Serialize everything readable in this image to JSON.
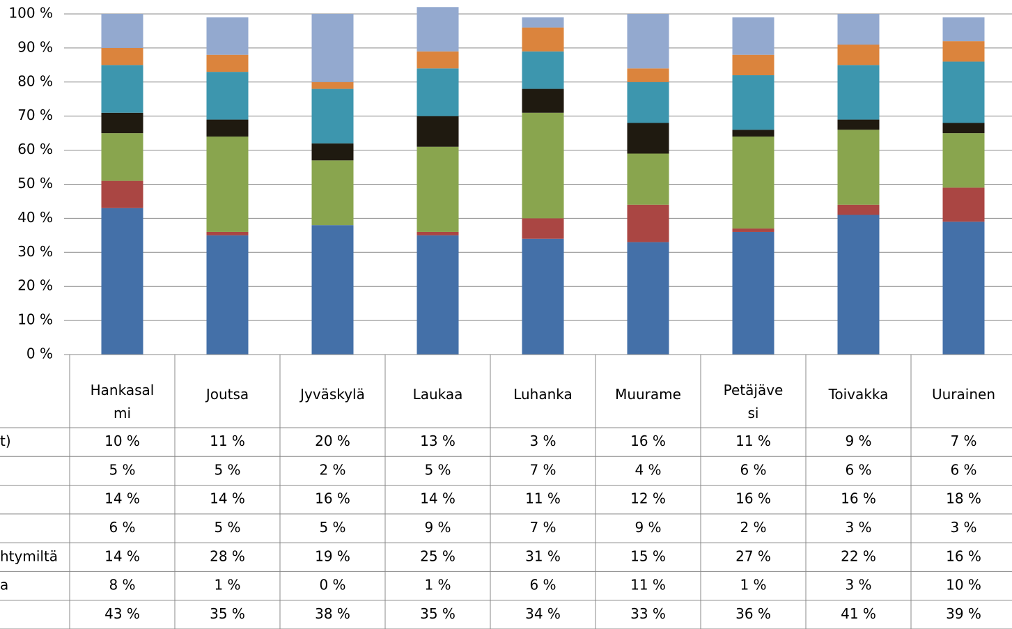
{
  "chart_data": {
    "type": "stacked-bar",
    "categories": [
      "Hankasalmi",
      "Joutsa",
      "Jyväskylä",
      "Laukaa",
      "Luhanka",
      "Muurame",
      "Petäjävesi",
      "Toivakka",
      "Uurainen"
    ],
    "series": [
      {
        "name": null,
        "color": "#4470a8",
        "values": [
          43,
          35,
          38,
          35,
          34,
          33,
          36,
          41,
          39
        ],
        "value_labels": [
          "43 %",
          "35 %",
          "38 %",
          "35 %",
          "34 %",
          "33 %",
          "36 %",
          "41 %",
          "39 %"
        ]
      },
      {
        "name": "a",
        "color": "#aa4643",
        "values": [
          8,
          1,
          0,
          1,
          6,
          11,
          1,
          3,
          10
        ],
        "value_labels": [
          "8 %",
          "1 %",
          "0 %",
          "1 %",
          "6 %",
          "11 %",
          "1 %",
          "3 %",
          "10 %"
        ]
      },
      {
        "name": "htymiltä",
        "color": "#89a54e",
        "values": [
          14,
          28,
          19,
          25,
          31,
          15,
          27,
          22,
          16
        ],
        "value_labels": [
          "14 %",
          "28 %",
          "19 %",
          "25 %",
          "31 %",
          "15 %",
          "27 %",
          "22 %",
          "16 %"
        ]
      },
      {
        "name": null,
        "color": "#1f1a10",
        "values": [
          6,
          5,
          5,
          9,
          7,
          9,
          2,
          3,
          3
        ],
        "value_labels": [
          "6 %",
          "5 %",
          "5 %",
          "9 %",
          "7 %",
          "9 %",
          "2 %",
          "3 %",
          "3 %"
        ]
      },
      {
        "name": null,
        "color": "#3d96ae",
        "values": [
          14,
          14,
          16,
          14,
          11,
          12,
          16,
          16,
          18
        ],
        "value_labels": [
          "14 %",
          "14 %",
          "16 %",
          "14 %",
          "11 %",
          "12 %",
          "16 %",
          "16 %",
          "18 %"
        ]
      },
      {
        "name": null,
        "color": "#db843d",
        "values": [
          5,
          5,
          2,
          5,
          7,
          4,
          6,
          6,
          6
        ],
        "value_labels": [
          "5 %",
          "5 %",
          "2 %",
          "5 %",
          "7 %",
          "4 %",
          "6 %",
          "6 %",
          "6 %"
        ]
      },
      {
        "name": "t)",
        "color": "#93a9cf",
        "values": [
          10,
          11,
          20,
          13,
          3,
          16,
          11,
          9,
          7
        ],
        "value_labels": [
          "10 %",
          "11 %",
          "20 %",
          "13 %",
          "3 %",
          "16 %",
          "11 %",
          "9 %",
          "7 %"
        ]
      }
    ],
    "ylim": [
      0,
      100
    ],
    "yticks": [
      {
        "value": 0,
        "label": "0 %"
      },
      {
        "value": 10,
        "label": "10 %"
      },
      {
        "value": 20,
        "label": "20 %"
      },
      {
        "value": 30,
        "label": "30 %"
      },
      {
        "value": 40,
        "label": "40 %"
      },
      {
        "value": 50,
        "label": "50 %"
      },
      {
        "value": 60,
        "label": "60 %"
      },
      {
        "value": 70,
        "label": "70 %"
      },
      {
        "value": 80,
        "label": "80 %"
      },
      {
        "value": 90,
        "label": "90 %"
      },
      {
        "value": 100,
        "label": "100 %"
      }
    ],
    "grid": true
  }
}
